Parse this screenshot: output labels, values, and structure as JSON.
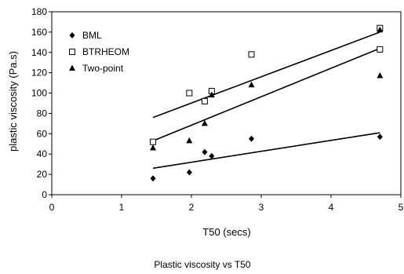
{
  "chart_data": {
    "type": "scatter",
    "title": "",
    "caption": "Plastic viscosity vs T50",
    "xlabel": "T50 (secs)",
    "ylabel": "plastic viscosity (Pa.s)",
    "xlim": [
      0,
      5
    ],
    "ylim": [
      0,
      180
    ],
    "xticks": [
      "0",
      "1",
      "2",
      "3",
      "4",
      "5"
    ],
    "yticks": [
      "0",
      "20",
      "40",
      "60",
      "80",
      "100",
      "120",
      "140",
      "160",
      "180"
    ],
    "grid": false,
    "legend_position": "top-left",
    "series": [
      {
        "name": "BML",
        "marker": "diamond",
        "color": "#000000",
        "points": [
          [
            1.45,
            16
          ],
          [
            1.97,
            22
          ],
          [
            2.19,
            42
          ],
          [
            2.29,
            38
          ],
          [
            2.86,
            55
          ],
          [
            4.7,
            57
          ]
        ],
        "trendline": [
          [
            1.45,
            26
          ],
          [
            4.7,
            61
          ]
        ]
      },
      {
        "name": "BTRHEOM",
        "marker": "open-square",
        "color": "#000000",
        "points": [
          [
            1.45,
            52
          ],
          [
            1.97,
            100
          ],
          [
            2.19,
            92
          ],
          [
            2.29,
            102
          ],
          [
            2.86,
            138
          ],
          [
            4.7,
            164
          ],
          [
            4.7,
            143
          ]
        ],
        "trendline": [
          [
            1.45,
            53
          ],
          [
            4.7,
            144
          ]
        ]
      },
      {
        "name": "Two-point",
        "marker": "triangle",
        "color": "#000000",
        "points": [
          [
            1.45,
            46
          ],
          [
            1.97,
            53
          ],
          [
            2.19,
            70
          ],
          [
            2.29,
            98
          ],
          [
            2.86,
            108
          ],
          [
            4.7,
            117
          ],
          [
            4.7,
            162
          ]
        ],
        "trendline": [
          [
            1.45,
            76
          ],
          [
            4.7,
            160
          ]
        ]
      }
    ]
  }
}
